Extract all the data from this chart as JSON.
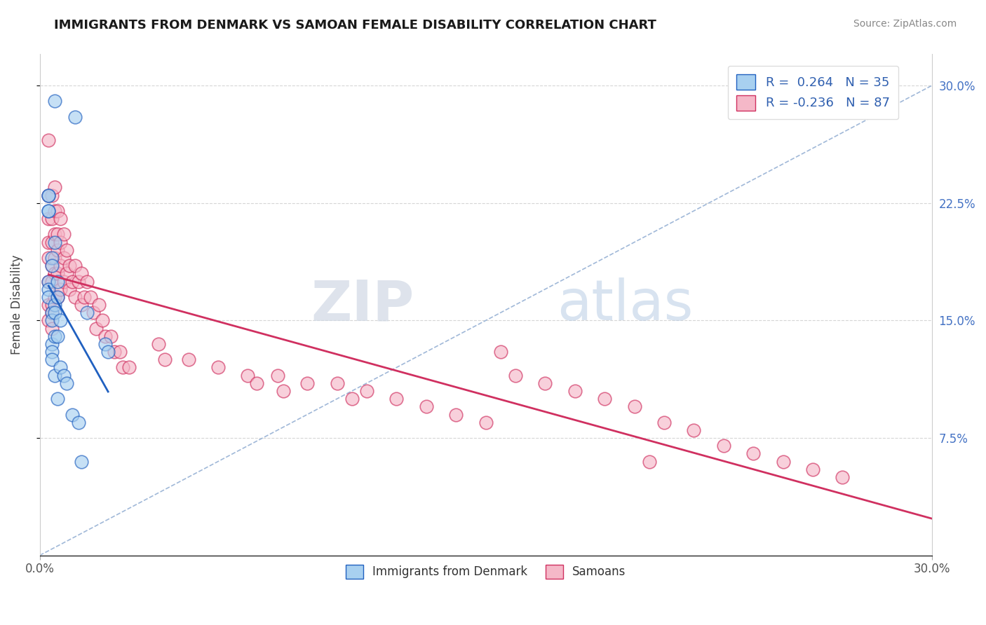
{
  "title": "IMMIGRANTS FROM DENMARK VS SAMOAN FEMALE DISABILITY CORRELATION CHART",
  "source": "Source: ZipAtlas.com",
  "ylabel": "Female Disability",
  "xlim": [
    0.0,
    0.3
  ],
  "ylim": [
    0.0,
    0.32
  ],
  "right_yticks": [
    0.075,
    0.15,
    0.225,
    0.3
  ],
  "right_yticklabels": [
    "7.5%",
    "15.0%",
    "22.5%",
    "30.0%"
  ],
  "r_blue": 0.264,
  "n_blue": 35,
  "r_pink": -0.236,
  "n_pink": 87,
  "legend_label_blue": "Immigrants from Denmark",
  "legend_label_pink": "Samoans",
  "blue_color": "#A8D0F0",
  "pink_color": "#F5B8C8",
  "trendline_blue_color": "#2060C0",
  "trendline_pink_color": "#D03060",
  "trendline_dashed_color": "#A0B8D8",
  "watermark_zip": "ZIP",
  "watermark_atlas": "atlas",
  "background_color": "#FFFFFF",
  "blue_scatter_x": [
    0.012,
    0.005,
    0.003,
    0.003,
    0.003,
    0.003,
    0.003,
    0.003,
    0.003,
    0.004,
    0.004,
    0.004,
    0.004,
    0.004,
    0.004,
    0.004,
    0.005,
    0.005,
    0.005,
    0.005,
    0.005,
    0.006,
    0.006,
    0.006,
    0.006,
    0.007,
    0.007,
    0.008,
    0.009,
    0.011,
    0.013,
    0.014,
    0.016,
    0.022,
    0.023
  ],
  "blue_scatter_y": [
    0.28,
    0.29,
    0.23,
    0.23,
    0.22,
    0.22,
    0.175,
    0.17,
    0.165,
    0.19,
    0.185,
    0.155,
    0.15,
    0.135,
    0.13,
    0.125,
    0.2,
    0.16,
    0.155,
    0.14,
    0.115,
    0.175,
    0.165,
    0.14,
    0.1,
    0.15,
    0.12,
    0.115,
    0.11,
    0.09,
    0.085,
    0.06,
    0.155,
    0.135,
    0.13
  ],
  "pink_scatter_x": [
    0.003,
    0.003,
    0.003,
    0.003,
    0.003,
    0.003,
    0.003,
    0.003,
    0.004,
    0.004,
    0.004,
    0.004,
    0.004,
    0.004,
    0.004,
    0.004,
    0.005,
    0.005,
    0.005,
    0.005,
    0.005,
    0.005,
    0.006,
    0.006,
    0.006,
    0.006,
    0.006,
    0.007,
    0.007,
    0.007,
    0.007,
    0.008,
    0.008,
    0.008,
    0.009,
    0.009,
    0.01,
    0.01,
    0.011,
    0.012,
    0.012,
    0.013,
    0.014,
    0.014,
    0.015,
    0.016,
    0.017,
    0.018,
    0.019,
    0.02,
    0.021,
    0.022,
    0.024,
    0.025,
    0.027,
    0.028,
    0.03,
    0.04,
    0.042,
    0.05,
    0.06,
    0.07,
    0.073,
    0.08,
    0.082,
    0.09,
    0.1,
    0.105,
    0.11,
    0.12,
    0.13,
    0.14,
    0.15,
    0.155,
    0.16,
    0.17,
    0.18,
    0.19,
    0.2,
    0.205,
    0.21,
    0.22,
    0.23,
    0.24,
    0.25,
    0.26,
    0.27
  ],
  "pink_scatter_y": [
    0.265,
    0.23,
    0.215,
    0.2,
    0.19,
    0.175,
    0.16,
    0.15,
    0.23,
    0.215,
    0.2,
    0.185,
    0.175,
    0.16,
    0.155,
    0.145,
    0.235,
    0.22,
    0.205,
    0.19,
    0.18,
    0.165,
    0.22,
    0.205,
    0.195,
    0.18,
    0.165,
    0.215,
    0.2,
    0.185,
    0.17,
    0.205,
    0.19,
    0.175,
    0.195,
    0.18,
    0.185,
    0.17,
    0.175,
    0.185,
    0.165,
    0.175,
    0.18,
    0.16,
    0.165,
    0.175,
    0.165,
    0.155,
    0.145,
    0.16,
    0.15,
    0.14,
    0.14,
    0.13,
    0.13,
    0.12,
    0.12,
    0.135,
    0.125,
    0.125,
    0.12,
    0.115,
    0.11,
    0.115,
    0.105,
    0.11,
    0.11,
    0.1,
    0.105,
    0.1,
    0.095,
    0.09,
    0.085,
    0.13,
    0.115,
    0.11,
    0.105,
    0.1,
    0.095,
    0.06,
    0.085,
    0.08,
    0.07,
    0.065,
    0.06,
    0.055,
    0.05
  ]
}
